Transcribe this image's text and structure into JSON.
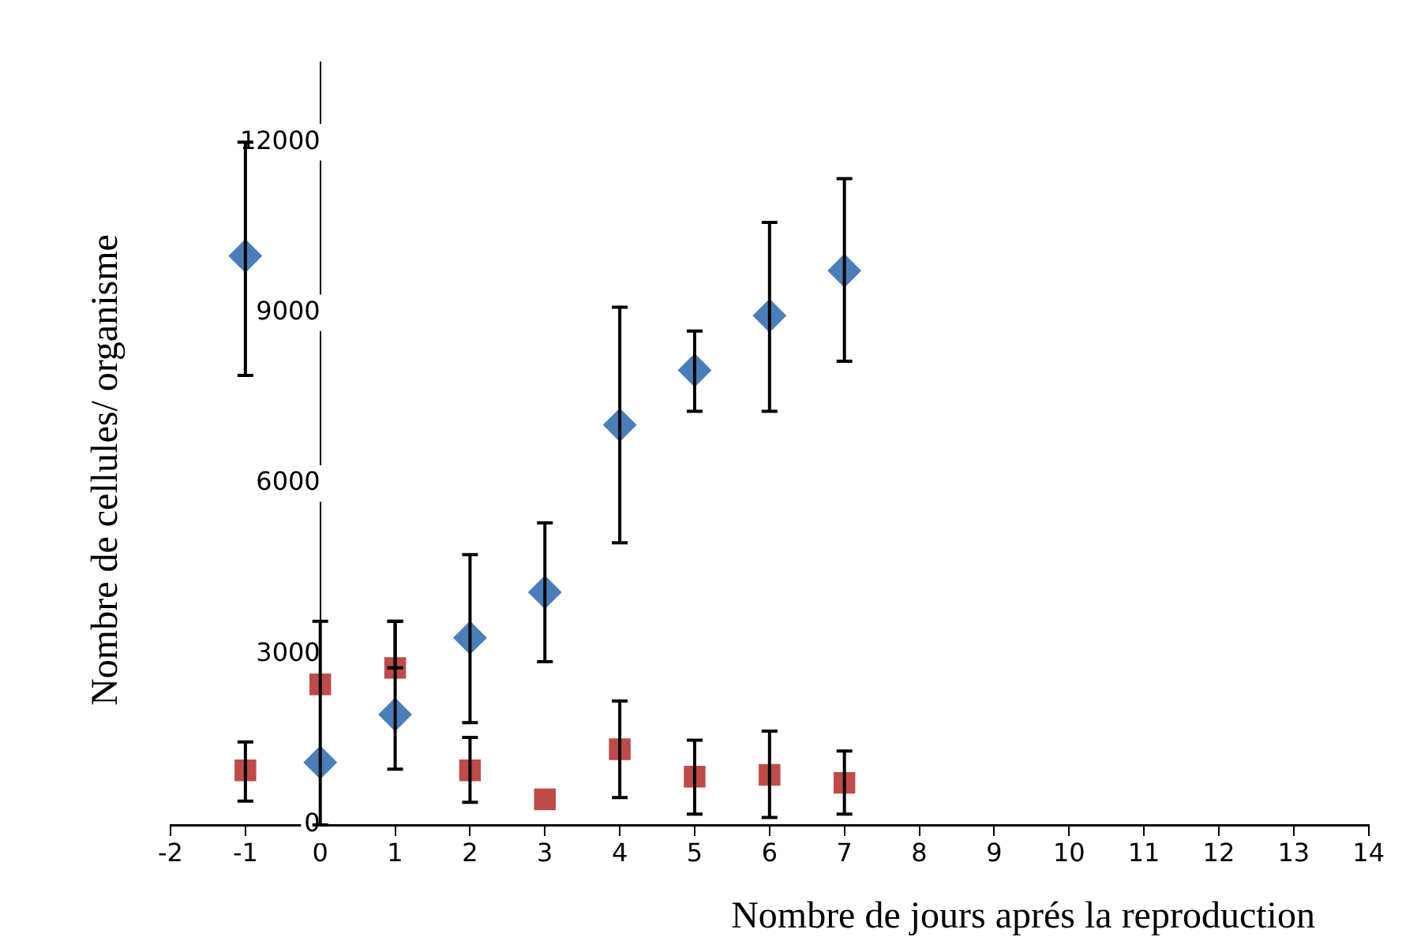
{
  "chart_data": {
    "type": "scatter",
    "xlabel": "Nombre de jours aprés la reproduction",
    "ylabel": "Nombre de cellules/ organisme",
    "xlim": [
      -2,
      14
    ],
    "xticks": [
      -2,
      -1,
      0,
      1,
      2,
      3,
      4,
      5,
      6,
      7,
      8,
      9,
      10,
      11,
      12,
      13,
      14
    ],
    "ylim": [
      0,
      13400
    ],
    "yticks": [
      0,
      3000,
      6000,
      9000,
      12000
    ],
    "grid": false,
    "legend": false,
    "series": [
      {
        "color": "#4a7ebb",
        "marker": "diamond",
        "x": [
          -1,
          0,
          1,
          2,
          3,
          4,
          5,
          6,
          7
        ],
        "values": [
          10000,
          1100,
          1940,
          3290,
          4090,
          7030,
          7990,
          8950,
          9740
        ],
        "errors": [
          [
            7900,
            12000
          ],
          [
            0,
            3580
          ],
          [
            980,
            3580
          ],
          [
            1800,
            4750
          ],
          [
            2870,
            5310
          ],
          [
            4960,
            9100
          ],
          [
            7270,
            8680
          ],
          [
            7270,
            10590
          ],
          [
            8150,
            11360
          ]
        ]
      },
      {
        "color": "#be4b48",
        "marker": "square",
        "x": [
          -1,
          0,
          1,
          2,
          3,
          4,
          5,
          6,
          7
        ],
        "values": [
          960,
          2470,
          2760,
          960,
          450,
          1330,
          850,
          880,
          740
        ],
        "errors": [
          [
            420,
            1460
          ],
          null,
          [
            2760,
            3580
          ],
          [
            400,
            1540
          ],
          null,
          [
            480,
            2180
          ],
          [
            190,
            1490
          ],
          [
            130,
            1650
          ],
          [
            190,
            1300
          ]
        ]
      }
    ]
  }
}
